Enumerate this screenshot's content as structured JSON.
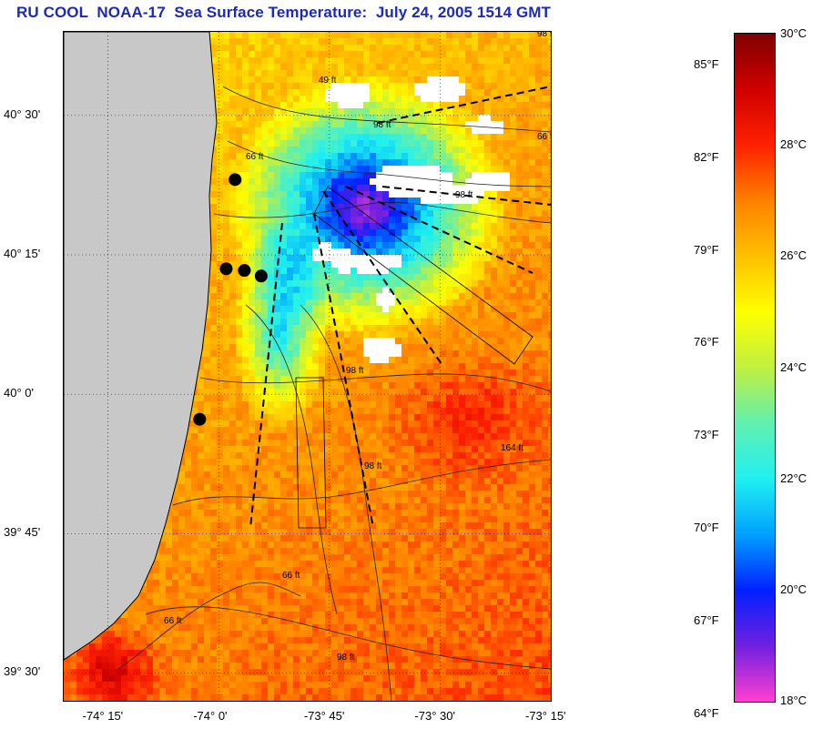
{
  "title": "RU COOL  NOAA-17  Sea Surface Temperature:  July 24, 2005 1514 GMT",
  "map": {
    "lon_range": [
      -74.35,
      -73.25
    ],
    "lat_range": [
      39.45,
      40.65
    ],
    "lat_ticks": [
      {
        "value": 40.5,
        "label": "40° 30'"
      },
      {
        "value": 40.25,
        "label": "40° 15'"
      },
      {
        "value": 40.0,
        "label": "40° 0'"
      },
      {
        "value": 39.75,
        "label": "39° 45'"
      },
      {
        "value": 39.5,
        "label": "39° 30'"
      }
    ],
    "lon_ticks": [
      {
        "value": -74.25,
        "label": "-74° 15'"
      },
      {
        "value": -74.0,
        "label": "-74° 0'"
      },
      {
        "value": -73.75,
        "label": "-73° 45'"
      },
      {
        "value": -73.5,
        "label": "-73° 30'"
      },
      {
        "value": -73.25,
        "label": "-73° 15'"
      }
    ],
    "grid": "dotted",
    "contour_labels": [
      "49 ft",
      "66 ft",
      "98 ft",
      "98 ft",
      "98 ft",
      "98 ft",
      "164 ft",
      "66 ft",
      "66 ft",
      "98 ft",
      "66 ft",
      "98 ft"
    ],
    "stations": [
      {
        "lon": -73.963,
        "lat": 40.385
      },
      {
        "lon": -73.983,
        "lat": 40.225
      },
      {
        "lon": -73.942,
        "lat": 40.222
      },
      {
        "lon": -73.904,
        "lat": 40.212
      },
      {
        "lon": -74.043,
        "lat": 39.955
      }
    ],
    "land_color": "#c8c8c8",
    "cloud_color": "#ffffff"
  },
  "colorbar": {
    "min_c": 18,
    "max_c": 30,
    "stops": [
      "#ff40d0",
      "#7020e0",
      "#0020ff",
      "#00a0ff",
      "#20f0f0",
      "#60f0b0",
      "#c0f040",
      "#ffff00",
      "#ffc000",
      "#ff8000",
      "#ff2000",
      "#d00000",
      "#800000"
    ],
    "celsius_labels": [
      "30°C",
      "28°C",
      "26°C",
      "24°C",
      "22°C",
      "20°C",
      "18°C"
    ],
    "fahrenheit_labels": [
      "85°F",
      "82°F",
      "79°F",
      "76°F",
      "73°F",
      "70°F",
      "67°F",
      "64°F"
    ]
  }
}
